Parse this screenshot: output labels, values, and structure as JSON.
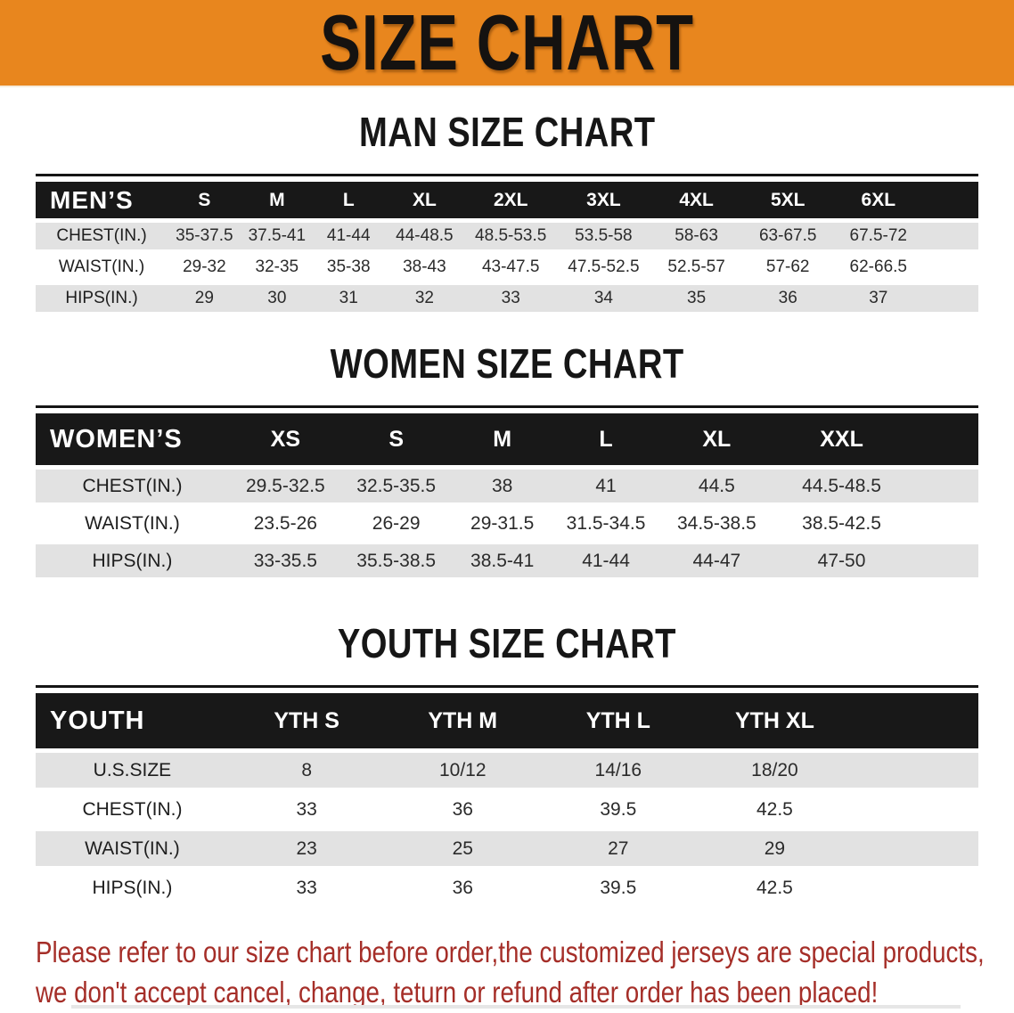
{
  "banner": {
    "title": "SIZE CHART"
  },
  "colors": {
    "banner_bg": "#E8861E",
    "header_bar": "#181818",
    "row_gray": "#E2E2E2",
    "disclaimer_red": "#A52E28"
  },
  "sections": [
    {
      "heading": "MAN SIZE CHART",
      "table": {
        "corner_label": "MEN’S",
        "sizes": [
          "S",
          "M",
          "L",
          "XL",
          "2XL",
          "3XL",
          "4XL",
          "5XL",
          "6XL"
        ],
        "rows": [
          {
            "label": "CHEST(IN.)",
            "values": [
              "35-37.5",
              "37.5-41",
              "41-44",
              "44-48.5",
              "48.5-53.5",
              "53.5-58",
              "58-63",
              "63-67.5",
              "67.5-72"
            ]
          },
          {
            "label": "WAIST(IN.)",
            "values": [
              "29-32",
              "32-35",
              "35-38",
              "38-43",
              "43-47.5",
              "47.5-52.5",
              "52.5-57",
              "57-62",
              "62-66.5"
            ]
          },
          {
            "label": "HIPS(IN.)",
            "values": [
              "29",
              "30",
              "31",
              "32",
              "33",
              "34",
              "35",
              "36",
              "37"
            ]
          }
        ]
      }
    },
    {
      "heading": "WOMEN SIZE CHART",
      "table": {
        "corner_label": "WOMEN’S",
        "sizes": [
          "XS",
          "S",
          "M",
          "L",
          "XL",
          "XXL"
        ],
        "rows": [
          {
            "label": "CHEST(IN.)",
            "values": [
              "29.5-32.5",
              "32.5-35.5",
              "38",
              "41",
              "44.5",
              "44.5-48.5"
            ]
          },
          {
            "label": "WAIST(IN.)",
            "values": [
              "23.5-26",
              "26-29",
              "29-31.5",
              "31.5-34.5",
              "34.5-38.5",
              "38.5-42.5"
            ]
          },
          {
            "label": "HIPS(IN.)",
            "values": [
              "33-35.5",
              "35.5-38.5",
              "38.5-41",
              "41-44",
              "44-47",
              "47-50"
            ]
          }
        ]
      }
    },
    {
      "heading": "YOUTH SIZE CHART",
      "table": {
        "corner_label": "YOUTH",
        "sizes": [
          "YTH S",
          "YTH M",
          "YTH L",
          "YTH XL"
        ],
        "rows": [
          {
            "label": "U.S.SIZE",
            "values": [
              "8",
              "10/12",
              "14/16",
              "18/20"
            ]
          },
          {
            "label": "CHEST(IN.)",
            "values": [
              "33",
              "36",
              "39.5",
              "42.5"
            ]
          },
          {
            "label": "WAIST(IN.)",
            "values": [
              "23",
              "25",
              "27",
              "29"
            ]
          },
          {
            "label": "HIPS(IN.)",
            "values": [
              "33",
              "36",
              "39.5",
              "42.5"
            ]
          }
        ]
      }
    }
  ],
  "disclaimer": {
    "lines": [
      "Please refer to our size chart before order,the customized jerseys are special products,",
      "we don't accept cancel, change, teturn or refund after order has been placed!"
    ]
  }
}
